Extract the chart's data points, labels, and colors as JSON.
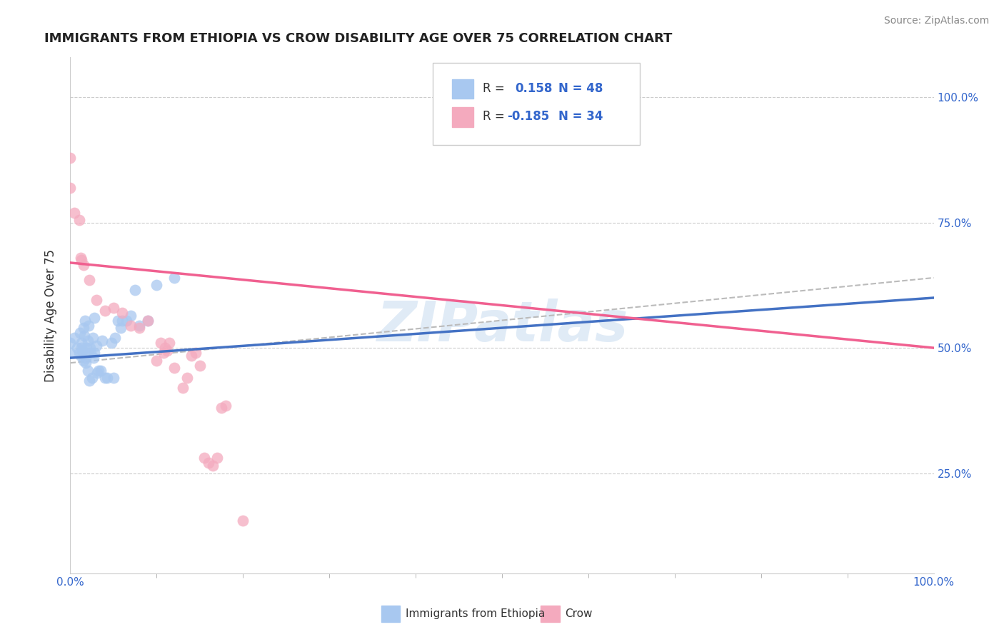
{
  "title": "IMMIGRANTS FROM ETHIOPIA VS CROW DISABILITY AGE OVER 75 CORRELATION CHART",
  "source": "Source: ZipAtlas.com",
  "ylabel": "Disability Age Over 75",
  "color_blue": "#A8C8F0",
  "color_pink": "#F4AABE",
  "color_blue_line": "#4472C4",
  "color_pink_line": "#F06090",
  "color_dashed": "#BBBBBB",
  "watermark": "ZIPatlas",
  "legend_label1": "Immigrants from Ethiopia",
  "legend_label2": "Crow",
  "legend_R1": "R =  0.158",
  "legend_N1": "N = 48",
  "legend_R2": "R = -0.185",
  "legend_N2": "N = 34",
  "xlim": [
    0.0,
    1.0
  ],
  "ylim": [
    0.05,
    1.08
  ],
  "x_ticks": [
    0.0,
    1.0
  ],
  "x_tick_labels": [
    "0.0%",
    "100.0%"
  ],
  "y_ticks": [
    0.25,
    0.5,
    0.75,
    1.0
  ],
  "y_tick_labels": [
    "25.0%",
    "50.0%",
    "75.0%",
    "100.0%"
  ],
  "blue_points_x": [
    0.0,
    0.0,
    0.005,
    0.008,
    0.01,
    0.011,
    0.012,
    0.013,
    0.013,
    0.014,
    0.015,
    0.015,
    0.016,
    0.017,
    0.018,
    0.018,
    0.019,
    0.02,
    0.02,
    0.021,
    0.022,
    0.023,
    0.024,
    0.025,
    0.026,
    0.027,
    0.028,
    0.028,
    0.03,
    0.031,
    0.033,
    0.035,
    0.037,
    0.04,
    0.043,
    0.048,
    0.05,
    0.052,
    0.055,
    0.058,
    0.06,
    0.065,
    0.07,
    0.075,
    0.08,
    0.09,
    0.1,
    0.12
  ],
  "blue_points_y": [
    0.49,
    0.51,
    0.52,
    0.5,
    0.49,
    0.53,
    0.485,
    0.5,
    0.51,
    0.495,
    0.54,
    0.475,
    0.525,
    0.555,
    0.48,
    0.47,
    0.5,
    0.515,
    0.455,
    0.545,
    0.435,
    0.5,
    0.49,
    0.44,
    0.52,
    0.48,
    0.56,
    0.49,
    0.505,
    0.45,
    0.455,
    0.455,
    0.515,
    0.44,
    0.44,
    0.51,
    0.44,
    0.52,
    0.555,
    0.54,
    0.555,
    0.555,
    0.565,
    0.615,
    0.545,
    0.555,
    0.625,
    0.64
  ],
  "pink_points_x": [
    0.0,
    0.0,
    0.005,
    0.01,
    0.012,
    0.013,
    0.015,
    0.022,
    0.03,
    0.04,
    0.05,
    0.06,
    0.07,
    0.08,
    0.09,
    0.1,
    0.105,
    0.108,
    0.11,
    0.112,
    0.115,
    0.12,
    0.13,
    0.135,
    0.14,
    0.145,
    0.15,
    0.155,
    0.16,
    0.165,
    0.17,
    0.175,
    0.18,
    0.2
  ],
  "pink_points_y": [
    0.88,
    0.82,
    0.77,
    0.755,
    0.68,
    0.675,
    0.665,
    0.635,
    0.595,
    0.575,
    0.58,
    0.57,
    0.545,
    0.54,
    0.555,
    0.475,
    0.51,
    0.49,
    0.5,
    0.495,
    0.51,
    0.46,
    0.42,
    0.44,
    0.485,
    0.49,
    0.465,
    0.28,
    0.27,
    0.265,
    0.28,
    0.38,
    0.385,
    0.155
  ],
  "blue_trend_x": [
    0.0,
    1.0
  ],
  "blue_trend_y": [
    0.48,
    0.6
  ],
  "pink_trend_x": [
    0.0,
    1.0
  ],
  "pink_trend_y": [
    0.67,
    0.5
  ],
  "dash_trend_x": [
    0.0,
    1.0
  ],
  "dash_trend_y": [
    0.47,
    0.64
  ]
}
